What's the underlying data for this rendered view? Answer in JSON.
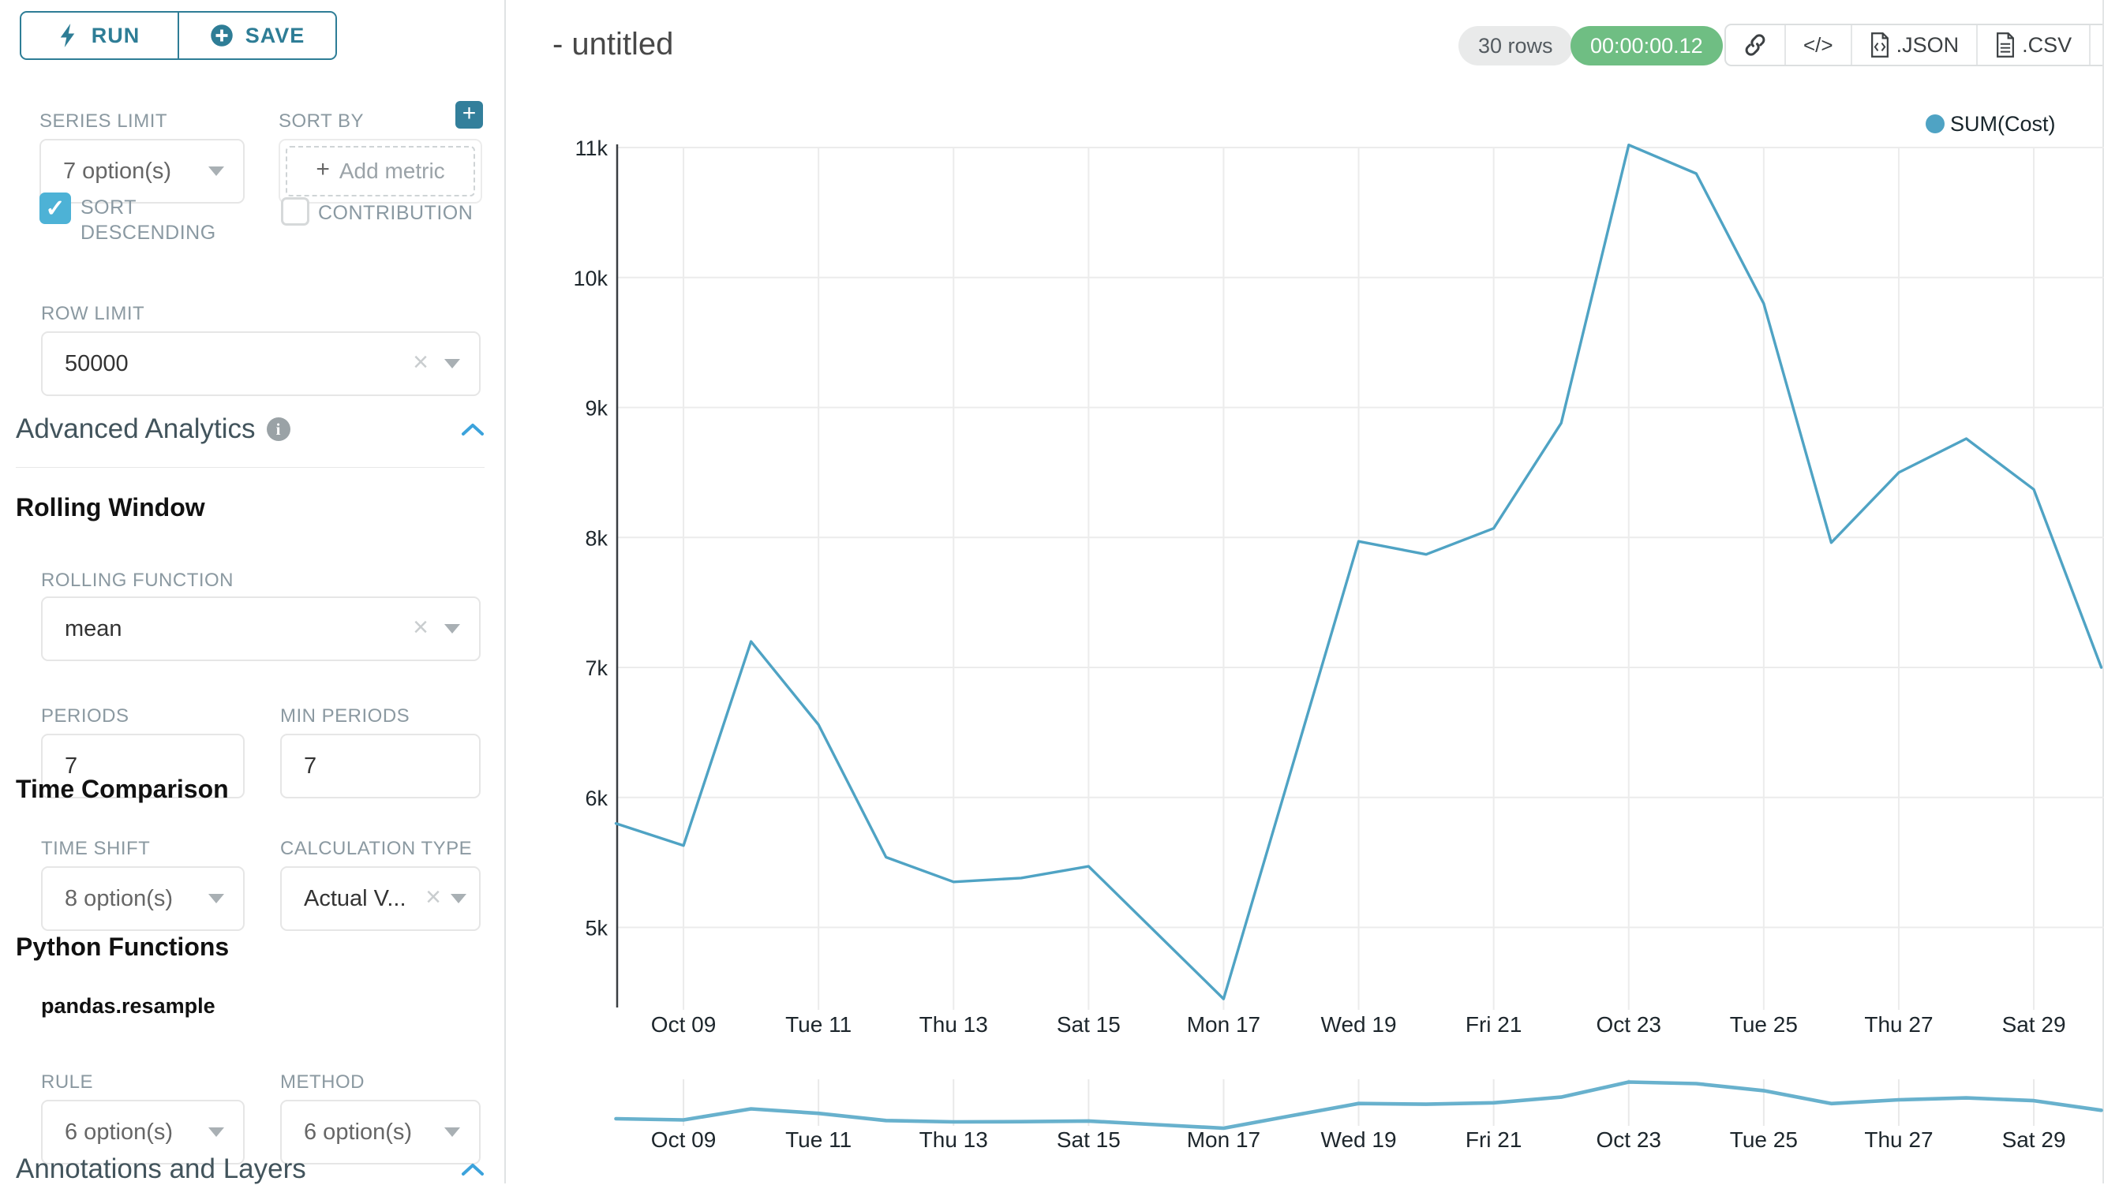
{
  "colors": {
    "primary_teal": "#2e7d96",
    "checkbox_teal": "#4db2d6",
    "chevron_blue": "#3ca3dc",
    "line_blue": "#4fa3c4",
    "mini_line_blue": "#68b1cd",
    "timer_green": "#6fbe83",
    "badge_gray": "#e9eaea",
    "gridline": "#ececec"
  },
  "icons": {
    "run": "lightning-bolt-icon",
    "save": "plus-circle-icon",
    "sort_by_add": "plus-square-icon",
    "advanced_analytics_info": "info-circle-icon",
    "section_collapse": "chevron-up-icon",
    "select_clear": "x-clear-icon",
    "select_caret": "caret-down-icon",
    "toolbar": [
      "link-icon",
      "code-icon",
      "json-file-icon",
      "csv-file-icon",
      "menu-icon"
    ],
    "legend_marker": "circle-dot-icon"
  },
  "sidebar": {
    "run_label": "RUN",
    "save_label": "SAVE",
    "series_limit": {
      "label": "SERIES LIMIT",
      "value": "7 option(s)"
    },
    "sort_by": {
      "label": "SORT BY",
      "placeholder": "Add metric",
      "plus": "+"
    },
    "sort_descending": {
      "label_line1": "SORT",
      "label_line2": "DESCENDING",
      "checked": true,
      "checkmark": "✓"
    },
    "contribution": {
      "label": "CONTRIBUTION",
      "checked": false
    },
    "row_limit": {
      "label": "ROW LIMIT",
      "value": "50000"
    },
    "advanced_analytics_title": "Advanced Analytics",
    "rolling_window": {
      "title": "Rolling Window",
      "rolling_function": {
        "label": "ROLLING FUNCTION",
        "value": "mean"
      },
      "periods": {
        "label": "PERIODS",
        "value": "7"
      },
      "min_periods": {
        "label": "MIN PERIODS",
        "value": "7"
      }
    },
    "time_comparison": {
      "title": "Time Comparison",
      "time_shift": {
        "label": "TIME SHIFT",
        "value": "8 option(s)"
      },
      "calculation_type": {
        "label": "CALCULATION TYPE",
        "value": "Actual V..."
      }
    },
    "python_functions": {
      "title": "Python Functions",
      "subtitle": "pandas.resample",
      "rule": {
        "label": "RULE",
        "value": "6 option(s)"
      },
      "method": {
        "label": "METHOD",
        "value": "6 option(s)"
      }
    },
    "annotations_title": "Annotations and Layers"
  },
  "header": {
    "title": "- untitled",
    "rows_badge": "30 rows",
    "timer_badge": "00:00:00.12",
    "json_label": ".JSON",
    "csv_label": ".CSV",
    "code_glyph": "</>"
  },
  "chart_data": {
    "type": "line",
    "title": "- untitled",
    "legend": [
      {
        "name": "SUM(Cost)",
        "color": "#4fa3c4"
      }
    ],
    "x": [
      "Oct 08",
      "Oct 09",
      "Oct 10",
      "Oct 11",
      "Oct 12",
      "Oct 13",
      "Oct 14",
      "Oct 15",
      "Oct 16",
      "Oct 17",
      "Oct 18",
      "Oct 19",
      "Oct 20",
      "Oct 21",
      "Oct 22",
      "Oct 23",
      "Oct 24",
      "Oct 25",
      "Oct 26",
      "Oct 27",
      "Oct 28",
      "Oct 29",
      "Oct 30"
    ],
    "series": [
      {
        "name": "SUM(Cost)",
        "values": [
          5800,
          5630,
          7200,
          6560,
          5540,
          5350,
          5380,
          5470,
          4960,
          4450,
          6210,
          7970,
          7870,
          8070,
          8880,
          11020,
          10800,
          9800,
          7960,
          8500,
          8760,
          8370,
          7000
        ]
      }
    ],
    "xlabel": "",
    "ylabel": "",
    "y_axis": {
      "min": 5000,
      "max": 11000,
      "step": 1000
    },
    "y_tick_labels": [
      "11k",
      "10k",
      "9k",
      "8k",
      "7k",
      "6k",
      "5k"
    ],
    "x_tick_labels": [
      "Oct 09",
      "Tue 11",
      "Thu 13",
      "Sat 15",
      "Mon 17",
      "Wed 19",
      "Fri 21",
      "Oct 23",
      "Tue 25",
      "Thu 27",
      "Sat 29"
    ],
    "x_tick_indices": [
      1,
      3,
      5,
      7,
      9,
      11,
      13,
      15,
      17,
      19,
      21
    ],
    "grid": true,
    "legend_position": "top-right",
    "range_selector": {
      "visible": true,
      "labels_same_as_x": true
    }
  }
}
